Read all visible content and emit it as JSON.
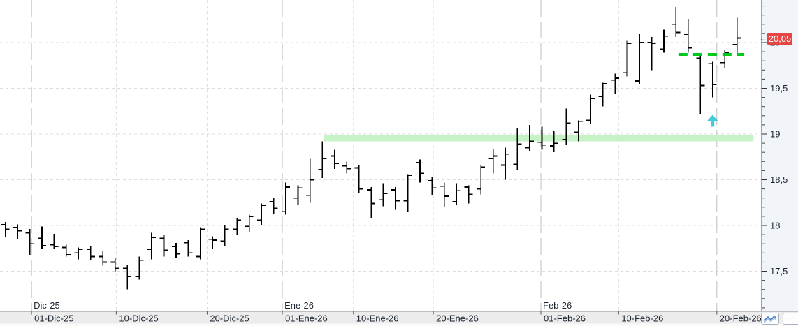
{
  "chart_data": {
    "type": "ohlc",
    "title": "",
    "grid": true,
    "y_axis": {
      "side": "right",
      "range": [
        17.06,
        20.47
      ],
      "major_step": 0.5,
      "minor_tick_step": 0.1,
      "labels": [
        {
          "value": 17.5,
          "text": "17,5"
        },
        {
          "value": 18.0,
          "text": "18"
        },
        {
          "value": 18.5,
          "text": "18,5"
        },
        {
          "value": 19.0,
          "text": "19"
        },
        {
          "value": 19.5,
          "text": "19,5"
        },
        {
          "value": 20.0,
          "text": "20"
        }
      ],
      "gridline_values": [
        17.5,
        18.0,
        18.5,
        19.0,
        19.5,
        20.0
      ]
    },
    "x_axis": {
      "month_starts": [
        {
          "label": "Dic-25",
          "pos": 2.15
        },
        {
          "label": "Ene-26",
          "pos": 22.72
        },
        {
          "label": "Feb-26",
          "pos": 43.92
        }
      ],
      "date_ticks": [
        {
          "label": "01-Dic-25",
          "pos": 2.15,
          "month_line": true
        },
        {
          "label": "10-Dic-25",
          "pos": 9.1,
          "month_line": false
        },
        {
          "label": "20-Dic-25",
          "pos": 16.55,
          "month_line": false
        },
        {
          "label": "01-Ene-26",
          "pos": 22.72,
          "month_line": true
        },
        {
          "label": "10-Ene-26",
          "pos": 28.55,
          "month_line": false
        },
        {
          "label": "20-Ene-26",
          "pos": 35.1,
          "month_line": false
        },
        {
          "label": "01-Feb-26",
          "pos": 43.92,
          "month_line": true
        },
        {
          "label": "10-Feb-26",
          "pos": 50.3,
          "month_line": false
        },
        {
          "label": "20-Feb-26",
          "pos": 58.35,
          "month_line": true
        }
      ]
    },
    "bars": [
      {
        "date": "27-Nov-25",
        "o": 18.01,
        "h": 18.04,
        "l": 17.87,
        "c": 17.96
      },
      {
        "date": "28-Nov-25",
        "o": 17.98,
        "h": 18.01,
        "l": 17.85,
        "c": 17.94
      },
      {
        "date": "01-Dic-25",
        "o": 17.92,
        "h": 17.96,
        "l": 17.68,
        "c": 17.8
      },
      {
        "date": "02-Dic-25",
        "o": 17.86,
        "h": 17.99,
        "l": 17.74,
        "c": 17.78
      },
      {
        "date": "03-Dic-25",
        "o": 17.79,
        "h": 17.91,
        "l": 17.75,
        "c": 17.77
      },
      {
        "date": "04-Dic-25",
        "o": 17.76,
        "h": 17.79,
        "l": 17.66,
        "c": 17.68
      },
      {
        "date": "05-Dic-25",
        "o": 17.7,
        "h": 17.76,
        "l": 17.63,
        "c": 17.74
      },
      {
        "date": "08-Dic-25",
        "o": 17.74,
        "h": 17.78,
        "l": 17.62,
        "c": 17.66
      },
      {
        "date": "09-Dic-25",
        "o": 17.66,
        "h": 17.72,
        "l": 17.56,
        "c": 17.6
      },
      {
        "date": "10-Dic-25",
        "o": 17.6,
        "h": 17.64,
        "l": 17.49,
        "c": 17.53
      },
      {
        "date": "11-Dic-25",
        "o": 17.53,
        "h": 17.57,
        "l": 17.3,
        "c": 17.44
      },
      {
        "date": "12-Dic-25",
        "o": 17.44,
        "h": 17.66,
        "l": 17.41,
        "c": 17.62
      },
      {
        "date": "15-Dic-25",
        "o": 17.74,
        "h": 17.92,
        "l": 17.63,
        "c": 17.87
      },
      {
        "date": "16-Dic-25",
        "o": 17.86,
        "h": 17.9,
        "l": 17.66,
        "c": 17.73
      },
      {
        "date": "17-Dic-25",
        "o": 17.77,
        "h": 17.81,
        "l": 17.64,
        "c": 17.69
      },
      {
        "date": "18-Dic-25",
        "o": 17.81,
        "h": 17.84,
        "l": 17.66,
        "c": 17.7
      },
      {
        "date": "19-Dic-25",
        "o": 17.66,
        "h": 17.98,
        "l": 17.63,
        "c": 17.96
      },
      {
        "date": "22-Dic-25",
        "o": 17.85,
        "h": 17.88,
        "l": 17.75,
        "c": 17.84
      },
      {
        "date": "23-Dic-25",
        "o": 17.83,
        "h": 18.0,
        "l": 17.78,
        "c": 17.96
      },
      {
        "date": "26-Dic-25",
        "o": 17.96,
        "h": 18.08,
        "l": 17.9,
        "c": 18.06
      },
      {
        "date": "29-Dic-25",
        "o": 17.99,
        "h": 18.12,
        "l": 17.93,
        "c": 18.1
      },
      {
        "date": "30-Dic-25",
        "o": 18.06,
        "h": 18.24,
        "l": 18.0,
        "c": 18.22
      },
      {
        "date": "31-Dic-25",
        "o": 18.26,
        "h": 18.3,
        "l": 18.13,
        "c": 18.19
      },
      {
        "date": "02-Ene-26",
        "o": 18.15,
        "h": 18.47,
        "l": 18.12,
        "c": 18.42
      },
      {
        "date": "05-Ene-26",
        "o": 18.3,
        "h": 18.44,
        "l": 18.23,
        "c": 18.41
      },
      {
        "date": "06-Ene-26",
        "o": 18.33,
        "h": 18.73,
        "l": 18.25,
        "c": 18.5
      },
      {
        "date": "07-Ene-26",
        "o": 18.61,
        "h": 18.92,
        "l": 18.52,
        "c": 18.73
      },
      {
        "date": "08-Ene-26",
        "o": 18.76,
        "h": 18.83,
        "l": 18.62,
        "c": 18.68
      },
      {
        "date": "09-Ene-26",
        "o": 18.65,
        "h": 18.7,
        "l": 18.57,
        "c": 18.62
      },
      {
        "date": "12-Ene-26",
        "o": 18.63,
        "h": 18.66,
        "l": 18.36,
        "c": 18.4
      },
      {
        "date": "13-Ene-26",
        "o": 18.39,
        "h": 18.42,
        "l": 18.08,
        "c": 18.24
      },
      {
        "date": "14-Ene-26",
        "o": 18.28,
        "h": 18.46,
        "l": 18.21,
        "c": 18.35
      },
      {
        "date": "15-Ene-26",
        "o": 18.39,
        "h": 18.42,
        "l": 18.17,
        "c": 18.27
      },
      {
        "date": "16-Ene-26",
        "o": 18.27,
        "h": 18.56,
        "l": 18.15,
        "c": 18.55
      },
      {
        "date": "19-Ene-26",
        "o": 18.69,
        "h": 18.72,
        "l": 18.47,
        "c": 18.57
      },
      {
        "date": "20-Ene-26",
        "o": 18.49,
        "h": 18.53,
        "l": 18.33,
        "c": 18.41
      },
      {
        "date": "21-Ene-26",
        "o": 18.43,
        "h": 18.47,
        "l": 18.2,
        "c": 18.32
      },
      {
        "date": "22-Ene-26",
        "o": 18.26,
        "h": 18.46,
        "l": 18.23,
        "c": 18.38
      },
      {
        "date": "23-Ene-26",
        "o": 18.42,
        "h": 18.44,
        "l": 18.24,
        "c": 18.34
      },
      {
        "date": "26-Ene-26",
        "o": 18.4,
        "h": 18.66,
        "l": 18.34,
        "c": 18.64
      },
      {
        "date": "27-Ene-26",
        "o": 18.73,
        "h": 18.84,
        "l": 18.57,
        "c": 18.76
      },
      {
        "date": "28-Ene-26",
        "o": 18.66,
        "h": 18.85,
        "l": 18.5,
        "c": 18.78
      },
      {
        "date": "29-Ene-26",
        "o": 18.67,
        "h": 19.06,
        "l": 18.61,
        "c": 18.89
      },
      {
        "date": "30-Ene-26",
        "o": 18.85,
        "h": 19.1,
        "l": 18.81,
        "c": 18.92
      },
      {
        "date": "02-Feb-26",
        "o": 18.91,
        "h": 19.08,
        "l": 18.83,
        "c": 18.88
      },
      {
        "date": "03-Feb-26",
        "o": 18.87,
        "h": 19.04,
        "l": 18.8,
        "c": 18.9
      },
      {
        "date": "04-Feb-26",
        "o": 18.94,
        "h": 19.28,
        "l": 18.88,
        "c": 19.12
      },
      {
        "date": "05-Feb-26",
        "o": 19.02,
        "h": 19.15,
        "l": 18.92,
        "c": 19.14
      },
      {
        "date": "06-Feb-26",
        "o": 19.15,
        "h": 19.43,
        "l": 19.11,
        "c": 19.39
      },
      {
        "date": "09-Feb-26",
        "o": 19.41,
        "h": 19.56,
        "l": 19.3,
        "c": 19.55
      },
      {
        "date": "10-Feb-26",
        "o": 19.59,
        "h": 19.66,
        "l": 19.44,
        "c": 19.61
      },
      {
        "date": "11-Feb-26",
        "o": 19.67,
        "h": 20.02,
        "l": 19.63,
        "c": 19.99
      },
      {
        "date": "12-Feb-26",
        "o": 19.58,
        "h": 20.1,
        "l": 19.55,
        "c": 20.0
      },
      {
        "date": "13-Feb-26",
        "o": 20.0,
        "h": 20.06,
        "l": 19.7,
        "c": 19.99
      },
      {
        "date": "16-Feb-26",
        "o": 19.93,
        "h": 20.14,
        "l": 19.89,
        "c": 20.07
      },
      {
        "date": "17-Feb-26",
        "o": 20.2,
        "h": 20.39,
        "l": 20.06,
        "c": 20.11
      },
      {
        "date": "18-Feb-26",
        "o": 20.09,
        "h": 20.26,
        "l": 19.89,
        "c": 19.94
      },
      {
        "date": "19-Feb-26",
        "o": 19.83,
        "h": 19.88,
        "l": 19.22,
        "c": 19.53
      },
      {
        "date": "20-Feb-26",
        "o": 19.77,
        "h": 19.79,
        "l": 19.4,
        "c": 19.54
      },
      {
        "date": "23-Feb-26",
        "o": 19.78,
        "h": 19.92,
        "l": 19.72,
        "c": 19.89
      },
      {
        "date": "24-Feb-26",
        "o": 19.98,
        "h": 20.27,
        "l": 19.87,
        "c": 20.05
      }
    ],
    "annotations": {
      "support_band": {
        "top_price": 18.99,
        "bottom_price": 18.92,
        "from_index": 26.1,
        "to_index": 61.35,
        "color": "#c5f3c5"
      },
      "dashed_level": {
        "price": 19.87,
        "from_index": 55.2,
        "to_index": 60.6,
        "color": "#00c91e",
        "style": "dashed",
        "width": 4
      },
      "buy_arrow": {
        "at_index": 58,
        "tip_price": 19.21,
        "direction": "up",
        "color": "#41ccd7"
      },
      "last_price": {
        "value": 20.05,
        "label": "20,05",
        "badge_color": "#e64545",
        "pointer_glyph": "←"
      }
    },
    "colors": {
      "bar": "#000000",
      "grid_dashed": "#dcdcdc",
      "month_line": "#bfbfbf",
      "axis_bg": "#f1f4f8",
      "strip_bg": "#ececec",
      "axis_line": "#4a4a4a",
      "border": "#909090",
      "label_text": "#1b2430"
    }
  },
  "controls": {
    "chart_mode_button": {
      "icon": "line-zigzag",
      "color": "#4d82cc"
    }
  }
}
